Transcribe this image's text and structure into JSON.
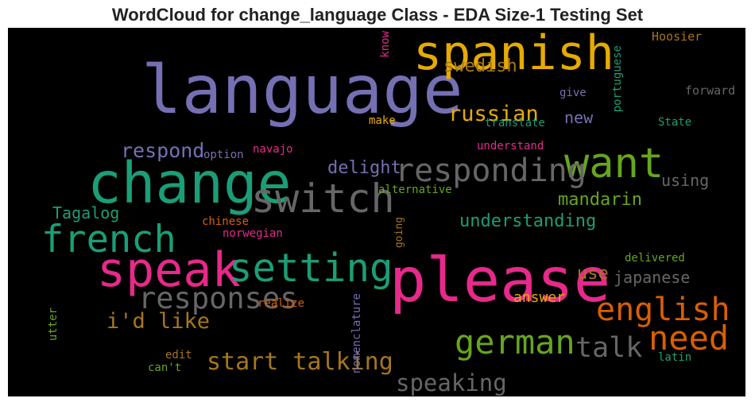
{
  "chart_data": {
    "type": "wordcloud",
    "title": "WordCloud for change_language Class - EDA Size-1 Testing Set",
    "background": "#000000",
    "words": [
      {
        "text": "language",
        "weight": 1.0,
        "color": "#7570b3",
        "vertical": false
      },
      {
        "text": "please",
        "weight": 0.92,
        "color": "#e7298a",
        "vertical": false
      },
      {
        "text": "change",
        "weight": 0.84,
        "color": "#1b9e77",
        "vertical": false
      },
      {
        "text": "spanish",
        "weight": 0.72,
        "color": "#e6ab02",
        "vertical": false
      },
      {
        "text": "speak",
        "weight": 0.72,
        "color": "#e7298a",
        "vertical": false
      },
      {
        "text": "want",
        "weight": 0.62,
        "color": "#66a61e",
        "vertical": false
      },
      {
        "text": "switch",
        "weight": 0.6,
        "color": "#666666",
        "vertical": false
      },
      {
        "text": "setting",
        "weight": 0.58,
        "color": "#1b9e77",
        "vertical": false
      },
      {
        "text": "french",
        "weight": 0.56,
        "color": "#1b9e77",
        "vertical": false
      },
      {
        "text": "responding",
        "weight": 0.48,
        "color": "#666666",
        "vertical": false
      },
      {
        "text": "german",
        "weight": 0.5,
        "color": "#66a61e",
        "vertical": false
      },
      {
        "text": "need",
        "weight": 0.5,
        "color": "#d95f02",
        "vertical": false
      },
      {
        "text": "english",
        "weight": 0.48,
        "color": "#d95f02",
        "vertical": false
      },
      {
        "text": "responses",
        "weight": 0.44,
        "color": "#666666",
        "vertical": false
      },
      {
        "text": "talk",
        "weight": 0.42,
        "color": "#666666",
        "vertical": false
      },
      {
        "text": "start talking",
        "weight": 0.36,
        "color": "#a6761d",
        "vertical": false
      },
      {
        "text": "speaking",
        "weight": 0.34,
        "color": "#666666",
        "vertical": false
      },
      {
        "text": "i'd like",
        "weight": 0.32,
        "color": "#a6761d",
        "vertical": false
      },
      {
        "text": "russian",
        "weight": 0.32,
        "color": "#e6ab02",
        "vertical": false
      },
      {
        "text": "respond",
        "weight": 0.3,
        "color": "#7570b3",
        "vertical": false
      },
      {
        "text": "swedish",
        "weight": 0.26,
        "color": "#a6761d",
        "vertical": false
      },
      {
        "text": "understanding",
        "weight": 0.26,
        "color": "#1b9e77",
        "vertical": false
      },
      {
        "text": "mandarin",
        "weight": 0.26,
        "color": "#66a61e",
        "vertical": false
      },
      {
        "text": "delight",
        "weight": 0.26,
        "color": "#7570b3",
        "vertical": false
      },
      {
        "text": "use",
        "weight": 0.26,
        "color": "#a6761d",
        "vertical": false
      },
      {
        "text": "Tagalog",
        "weight": 0.24,
        "color": "#1b9e77",
        "vertical": false
      },
      {
        "text": "using",
        "weight": 0.24,
        "color": "#666666",
        "vertical": false
      },
      {
        "text": "japanese",
        "weight": 0.24,
        "color": "#666666",
        "vertical": false
      },
      {
        "text": "new",
        "weight": 0.24,
        "color": "#7570b3",
        "vertical": false
      },
      {
        "text": "answer",
        "weight": 0.22,
        "color": "#e6ab02",
        "vertical": false
      },
      {
        "text": "Hoosier",
        "weight": 0.18,
        "color": "#a6761d",
        "vertical": false
      },
      {
        "text": "forward",
        "weight": 0.18,
        "color": "#666666",
        "vertical": false
      },
      {
        "text": "give",
        "weight": 0.17,
        "color": "#7570b3",
        "vertical": false
      },
      {
        "text": "make",
        "weight": 0.17,
        "color": "#e6ab02",
        "vertical": false
      },
      {
        "text": "translate",
        "weight": 0.17,
        "color": "#1b9e77",
        "vertical": false
      },
      {
        "text": "State",
        "weight": 0.17,
        "color": "#1b9e77",
        "vertical": false
      },
      {
        "text": "option",
        "weight": 0.17,
        "color": "#7570b3",
        "vertical": false
      },
      {
        "text": "navajo",
        "weight": 0.17,
        "color": "#e7298a",
        "vertical": false
      },
      {
        "text": "understand",
        "weight": 0.17,
        "color": "#e7298a",
        "vertical": false
      },
      {
        "text": "alternative",
        "weight": 0.17,
        "color": "#66a61e",
        "vertical": false
      },
      {
        "text": "chinese",
        "weight": 0.17,
        "color": "#d95f02",
        "vertical": false
      },
      {
        "text": "norwegian",
        "weight": 0.17,
        "color": "#e7298a",
        "vertical": false
      },
      {
        "text": "delivered",
        "weight": 0.17,
        "color": "#66a61e",
        "vertical": false
      },
      {
        "text": "realize",
        "weight": 0.17,
        "color": "#d95f02",
        "vertical": false
      },
      {
        "text": "edit",
        "weight": 0.17,
        "color": "#a6761d",
        "vertical": false
      },
      {
        "text": "can't",
        "weight": 0.17,
        "color": "#66a61e",
        "vertical": false
      },
      {
        "text": "latin",
        "weight": 0.17,
        "color": "#1b9e77",
        "vertical": false
      },
      {
        "text": "know",
        "weight": 0.17,
        "color": "#e7298a",
        "vertical": true
      },
      {
        "text": "portuguese",
        "weight": 0.17,
        "color": "#1b9e77",
        "vertical": true
      },
      {
        "text": "going",
        "weight": 0.15,
        "color": "#a6761d",
        "vertical": true
      },
      {
        "text": "nomenclature",
        "weight": 0.17,
        "color": "#7570b3",
        "vertical": true
      },
      {
        "text": "utter",
        "weight": 0.17,
        "color": "#66a61e",
        "vertical": true
      }
    ]
  }
}
